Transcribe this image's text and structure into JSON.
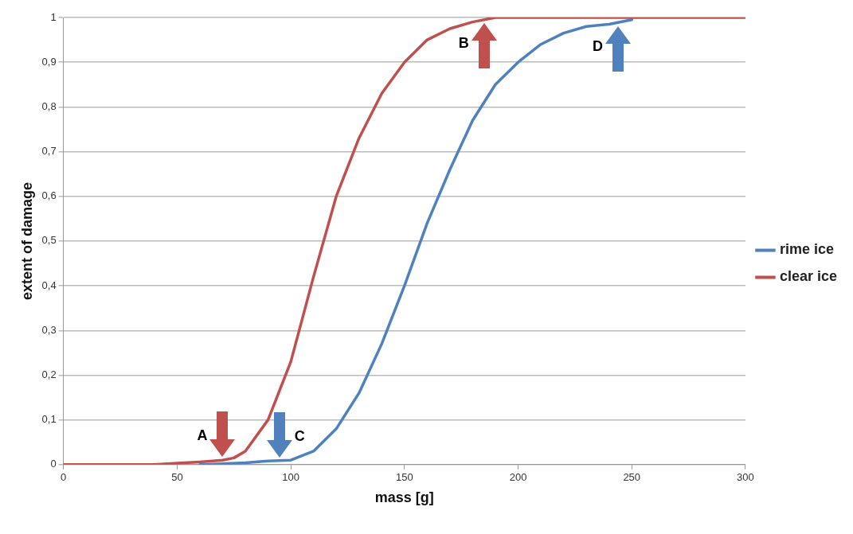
{
  "chart_data": {
    "type": "line",
    "xlabel": "mass [g]",
    "ylabel": "extent of damage",
    "xlim": [
      0,
      300
    ],
    "xticks": [
      0,
      50,
      100,
      150,
      200,
      250,
      300
    ],
    "ylim": [
      0,
      1
    ],
    "yticks": [
      0,
      {
        "value": 0.1,
        "label": "0,1"
      },
      {
        "value": 0.2,
        "label": "0,2"
      },
      {
        "value": 0.3,
        "label": "0,3"
      },
      {
        "value": 0.4,
        "label": "0,4"
      },
      {
        "value": 0.5,
        "label": "0,5"
      },
      {
        "value": 0.6,
        "label": "0,6"
      },
      {
        "value": 0.7,
        "label": "0,7"
      },
      {
        "value": 0.8,
        "label": "0,8"
      },
      {
        "value": 0.9,
        "label": "0,9"
      },
      1
    ],
    "grid": "y",
    "legend": "right",
    "marker": "none",
    "series": [
      {
        "name": "rime ice",
        "color": "#4f81bd",
        "x": [
          60,
          70,
          80,
          90,
          100,
          110,
          120,
          130,
          140,
          150,
          160,
          170,
          180,
          190,
          200,
          210,
          220,
          230,
          240,
          250
        ],
        "values": [
          0,
          0.002,
          0.004,
          0.008,
          0.01,
          0.03,
          0.08,
          0.16,
          0.27,
          0.4,
          0.54,
          0.66,
          0.77,
          0.85,
          0.9,
          0.94,
          0.965,
          0.98,
          0.985,
          0.995
        ]
      },
      {
        "name": "clear ice",
        "color": "#c0504d",
        "x": [
          0,
          10,
          20,
          30,
          40,
          50,
          60,
          70,
          75,
          80,
          90,
          100,
          110,
          120,
          130,
          140,
          150,
          160,
          170,
          180,
          190,
          200,
          210,
          220,
          230,
          240,
          250,
          260,
          270,
          280,
          290,
          300
        ],
        "values": [
          0,
          0,
          0,
          0,
          0,
          0.003,
          0.006,
          0.01,
          0.015,
          0.03,
          0.1,
          0.23,
          0.42,
          0.6,
          0.73,
          0.83,
          0.9,
          0.95,
          0.975,
          0.99,
          1,
          1,
          1,
          1,
          1,
          1,
          1,
          1,
          1,
          1,
          1,
          1
        ]
      }
    ],
    "annotations": [
      {
        "text": "A",
        "x": 70,
        "y": 0.01
      },
      {
        "text": "B",
        "x": 185,
        "y": 0.995
      },
      {
        "text": "C",
        "x": 95,
        "y": 0.009
      },
      {
        "text": "D",
        "x": 244,
        "y": 0.987
      }
    ]
  }
}
